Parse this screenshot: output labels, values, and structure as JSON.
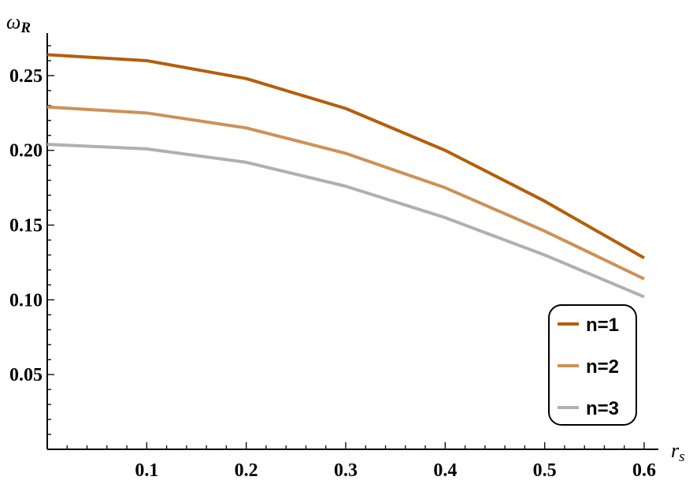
{
  "chart_data": {
    "type": "line",
    "title": "",
    "xlabel": "r",
    "xlabel_sub": "s",
    "ylabel": "ω",
    "ylabel_sub": "R",
    "xlim": [
      0,
      0.6
    ],
    "ylim": [
      0,
      0.27
    ],
    "x": [
      0,
      0.1,
      0.2,
      0.3,
      0.4,
      0.5,
      0.6
    ],
    "x_ticks": [
      "0.1",
      "0.2",
      "0.3",
      "0.4",
      "0.5",
      "0.6"
    ],
    "x_tick_values": [
      0.1,
      0.2,
      0.3,
      0.4,
      0.5,
      0.6
    ],
    "y_ticks": [
      "0.05",
      "0.10",
      "0.15",
      "0.20",
      "0.25"
    ],
    "y_tick_values": [
      0.05,
      0.1,
      0.15,
      0.2,
      0.25
    ],
    "grid": false,
    "legend_position": "bottom-right",
    "series": [
      {
        "name": "n=1",
        "color": "#b35f0c",
        "values": [
          0.264,
          0.26,
          0.248,
          0.228,
          0.2,
          0.166,
          0.128
        ]
      },
      {
        "name": "n=2",
        "color": "#cd9157",
        "values": [
          0.229,
          0.225,
          0.215,
          0.198,
          0.175,
          0.146,
          0.114
        ]
      },
      {
        "name": "n=3",
        "color": "#b0b0b0",
        "values": [
          0.204,
          0.201,
          0.192,
          0.176,
          0.155,
          0.13,
          0.102
        ]
      }
    ]
  }
}
